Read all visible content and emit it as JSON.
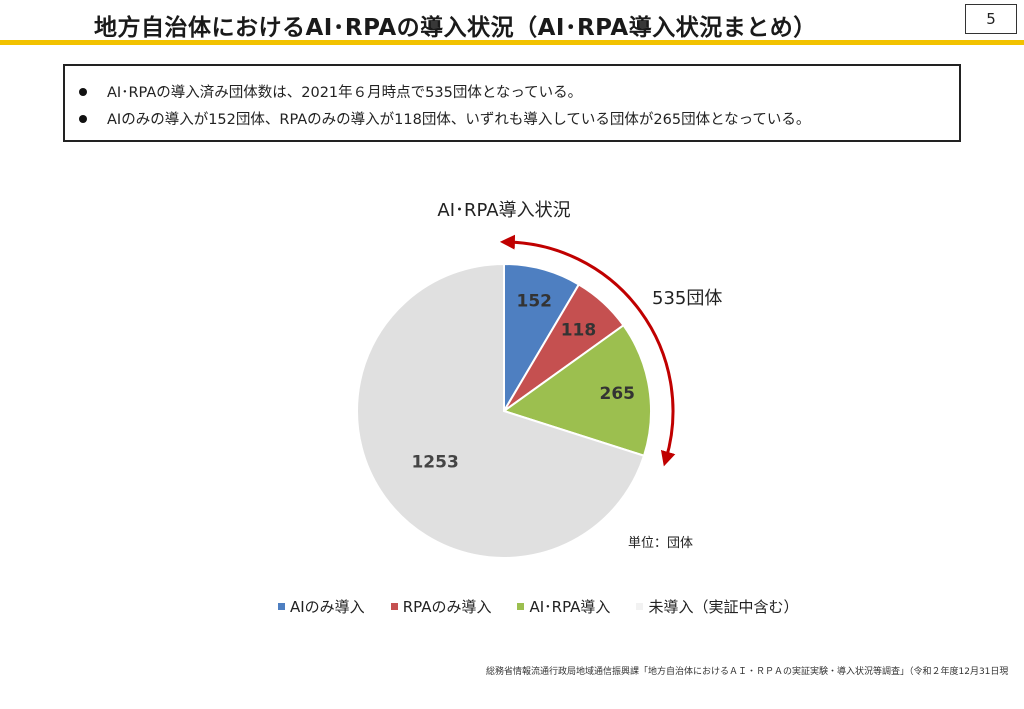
{
  "header": {
    "title": "地方自治体におけるAI･RPAの導入状況（AI･RPA導入状況まとめ）",
    "page_number": "5",
    "accent_color": "#f2c200"
  },
  "summary": {
    "bullets": [
      "AI･RPAの導入済み団体数は、2021年６月時点で535団体となっている。",
      "AIのみの導入が152団体、RPAのみの導入が118団体、いずれも導入している団体が265団体となっている。"
    ]
  },
  "chart_data": {
    "type": "pie",
    "title": "AI･RPA導入状況",
    "unit_label": "単位：団体",
    "annotation": "535団体",
    "slices": [
      {
        "label": "AIのみ導入",
        "value": 152,
        "color": "#4e7fc1"
      },
      {
        "label": "RPAのみ導入",
        "value": 118,
        "color": "#c55050"
      },
      {
        "label": "AI･RPA導入",
        "value": 265,
        "color": "#9cbf4f"
      },
      {
        "label": "未導入（実証中含む）",
        "value": 1253,
        "color": "#e0e0e0"
      }
    ],
    "legend_position": "bottom",
    "arrow_color": "#c00000"
  },
  "footer": {
    "source": "総務省情報流通行政局地域通信振興課「地方自治体におけるＡＩ・ＲＰＡの実証実験・導入状況等調査」（令和２年度12月31日現在）"
  }
}
